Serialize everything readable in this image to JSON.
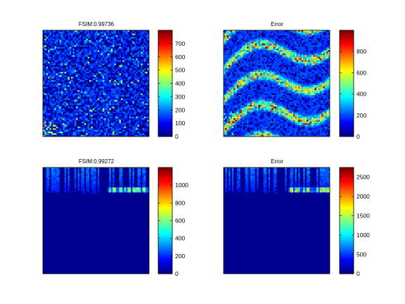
{
  "colormap": "jet",
  "chart_data": [
    {
      "type": "heatmap",
      "title": "FSIM:0.99736",
      "colorbar": {
        "min": 0,
        "max": 800,
        "ticks": [
          0,
          100,
          200,
          300,
          400,
          500,
          600,
          700
        ]
      },
      "pattern": "noise",
      "note_values": "sparse noise, mostly 0-150 with scattered peaks up to ~500 near lower-left"
    },
    {
      "type": "heatmap",
      "title": "Error",
      "colorbar": {
        "min": 0,
        "max": 1000,
        "ticks": [
          0,
          200,
          400,
          600,
          800
        ]
      },
      "pattern": "streaks"
    },
    {
      "type": "heatmap",
      "title": "FSIM:0.99272",
      "colorbar": {
        "min": 0,
        "max": 1200,
        "ticks": [
          0,
          200,
          400,
          600,
          800,
          1000
        ]
      },
      "pattern": "top-band"
    },
    {
      "type": "heatmap",
      "title": "Error",
      "colorbar": {
        "min": 0,
        "max": 2750,
        "ticks": [
          0,
          500,
          1000,
          1500,
          2000,
          2500
        ]
      },
      "pattern": "top-band"
    }
  ]
}
